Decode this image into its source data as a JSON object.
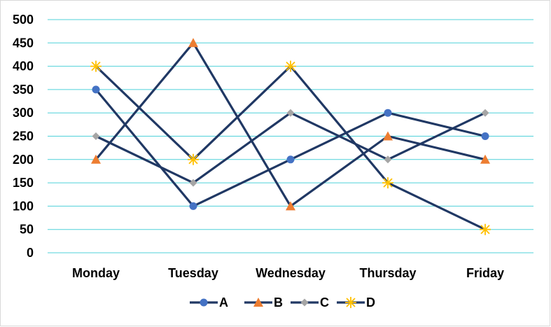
{
  "chart_data": {
    "type": "line",
    "title": "",
    "xlabel": "",
    "ylabel": "",
    "categories": [
      "Monday",
      "Tuesday",
      "Wednesday",
      "Thursday",
      "Friday"
    ],
    "ylim": [
      0,
      500
    ],
    "yticks": [
      0,
      50,
      100,
      150,
      200,
      250,
      300,
      350,
      400,
      450,
      500
    ],
    "grid": true,
    "legend_position": "bottom",
    "series": [
      {
        "name": "A",
        "values": [
          350,
          100,
          200,
          300,
          250
        ],
        "marker": "circle",
        "marker_color": "#4472c4"
      },
      {
        "name": "B",
        "values": [
          200,
          450,
          100,
          250,
          200
        ],
        "marker": "triangle",
        "marker_color": "#ed7d31"
      },
      {
        "name": "C",
        "values": [
          250,
          150,
          300,
          200,
          300
        ],
        "marker": "diamond",
        "marker_color": "#a5a5a5"
      },
      {
        "name": "D",
        "values": [
          400,
          200,
          400,
          150,
          50
        ],
        "marker": "star",
        "marker_color": "#ffc000"
      }
    ],
    "line_color": "#203864",
    "grid_color": "#4fd1d9"
  }
}
